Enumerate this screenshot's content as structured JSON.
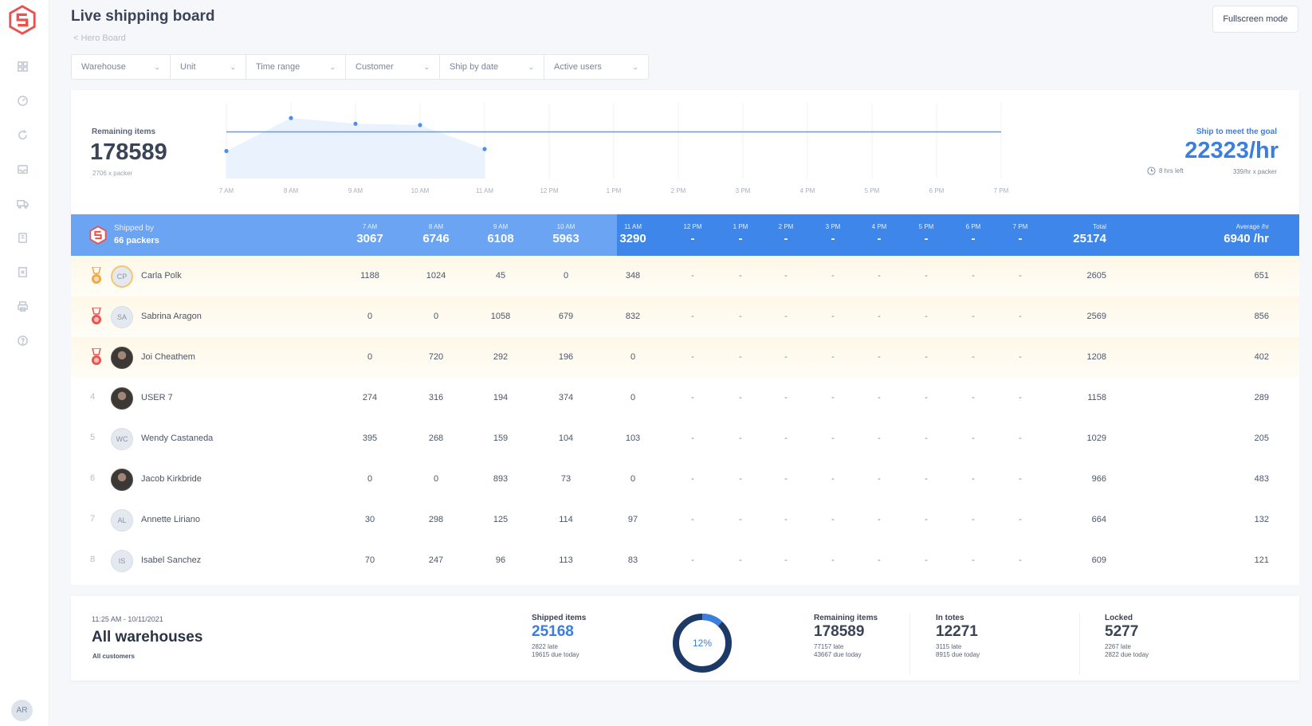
{
  "header": {
    "title": "Live shipping board",
    "breadcrumb": "< Hero Board",
    "fullscreen_label": "Fullscreen mode"
  },
  "filters": [
    "Warehouse",
    "Unit",
    "Time range",
    "Customer",
    "Ship by date",
    "Active users"
  ],
  "sidebar": {
    "icons": [
      "grid-icon",
      "dashboard-icon",
      "refresh-icon",
      "inbox-icon",
      "truck-icon",
      "package-icon",
      "report-icon",
      "printer-icon",
      "help-icon"
    ],
    "user_initials": "AR"
  },
  "summary_top": {
    "remaining_label": "Remaining items",
    "remaining_value": "178589",
    "remaining_sub": "2706 x packer",
    "goal_label": "Ship to meet the goal",
    "goal_value": "22323/hr",
    "goal_time_left": "8 hrs left",
    "goal_per_packer": "339/hr x packer"
  },
  "chart_data": {
    "type": "line",
    "x": [
      "7 AM",
      "8 AM",
      "9 AM",
      "10 AM",
      "11 AM",
      "12 PM",
      "1 PM",
      "2 PM",
      "3 PM",
      "4 PM",
      "5 PM",
      "6 PM",
      "7 PM"
    ],
    "series": [
      {
        "values": [
          3067,
          6746,
          6108,
          5963,
          3290,
          null,
          null,
          null,
          null,
          null,
          null,
          null,
          null
        ]
      }
    ],
    "goal_line": 5200,
    "ylim": [
      0,
      8000
    ],
    "grid": true
  },
  "table": {
    "shipped_by_label": "Shipped by",
    "packers_label": "66 packers",
    "hours": [
      {
        "label": "7 AM",
        "value": "3067"
      },
      {
        "label": "8 AM",
        "value": "6746"
      },
      {
        "label": "9 AM",
        "value": "6108"
      },
      {
        "label": "10 AM",
        "value": "5963"
      },
      {
        "label": "11 AM",
        "value": "3290"
      },
      {
        "label": "12 PM",
        "value": "-"
      },
      {
        "label": "1 PM",
        "value": "-"
      },
      {
        "label": "2 PM",
        "value": "-"
      },
      {
        "label": "3 PM",
        "value": "-"
      },
      {
        "label": "4 PM",
        "value": "-"
      },
      {
        "label": "5 PM",
        "value": "-"
      },
      {
        "label": "6 PM",
        "value": "-"
      },
      {
        "label": "7 PM",
        "value": "-"
      }
    ],
    "total_label": "Total",
    "total_value": "25174",
    "avg_label": "Average /hr",
    "avg_value": "6940 /hr",
    "rows": [
      {
        "rank": "1",
        "initials": "CP",
        "photo": false,
        "name": "Carla Polk",
        "vals": [
          "1188",
          "1024",
          "45",
          "0",
          "348"
        ],
        "total": "2605",
        "avg": "651"
      },
      {
        "rank": "2",
        "initials": "SA",
        "photo": false,
        "name": "Sabrina Aragon",
        "vals": [
          "0",
          "0",
          "1058",
          "679",
          "832"
        ],
        "total": "2569",
        "avg": "856"
      },
      {
        "rank": "3",
        "initials": "",
        "photo": true,
        "name": "Joi Cheathem",
        "vals": [
          "0",
          "720",
          "292",
          "196",
          "0"
        ],
        "total": "1208",
        "avg": "402"
      },
      {
        "rank": "4",
        "initials": "",
        "photo": true,
        "name": "USER 7",
        "vals": [
          "274",
          "316",
          "194",
          "374",
          "0"
        ],
        "total": "1158",
        "avg": "289"
      },
      {
        "rank": "5",
        "initials": "WC",
        "photo": false,
        "name": "Wendy Castaneda",
        "vals": [
          "395",
          "268",
          "159",
          "104",
          "103"
        ],
        "total": "1029",
        "avg": "205"
      },
      {
        "rank": "6",
        "initials": "",
        "photo": true,
        "name": "Jacob Kirkbride",
        "vals": [
          "0",
          "0",
          "893",
          "73",
          "0"
        ],
        "total": "966",
        "avg": "483"
      },
      {
        "rank": "7",
        "initials": "AL",
        "photo": false,
        "name": "Annette Liriano",
        "vals": [
          "30",
          "298",
          "125",
          "114",
          "97"
        ],
        "total": "664",
        "avg": "132"
      },
      {
        "rank": "8",
        "initials": "IS",
        "photo": false,
        "name": "Isabel Sanchez",
        "vals": [
          "70",
          "247",
          "96",
          "113",
          "83"
        ],
        "total": "609",
        "avg": "121"
      }
    ]
  },
  "summary_bottom": {
    "datetime": "11:25 AM - 10/11/2021",
    "title": "All warehouses",
    "subtitle": "All customers",
    "shipped": {
      "label": "Shipped items",
      "value": "25168",
      "sub1": "2822 late",
      "sub2": "19615 due today"
    },
    "progress": {
      "label": "12%",
      "fraction": 0.12
    },
    "remaining": {
      "label": "Remaining items",
      "value": "178589",
      "sub1": "77157 late",
      "sub2": "43667 due today"
    },
    "totes": {
      "label": "In totes",
      "value": "12271",
      "sub1": "3115 late",
      "sub2": "8915 due today"
    },
    "locked": {
      "label": "Locked",
      "value": "5277",
      "sub1": "2267 late",
      "sub2": "2822 due today"
    }
  },
  "colors": {
    "accent": "#3b7ee0",
    "header_blue": "#3f86ea",
    "header_light": "#6aa4f2",
    "brand": "#e8534e",
    "donut_dark": "#1d3a66"
  }
}
